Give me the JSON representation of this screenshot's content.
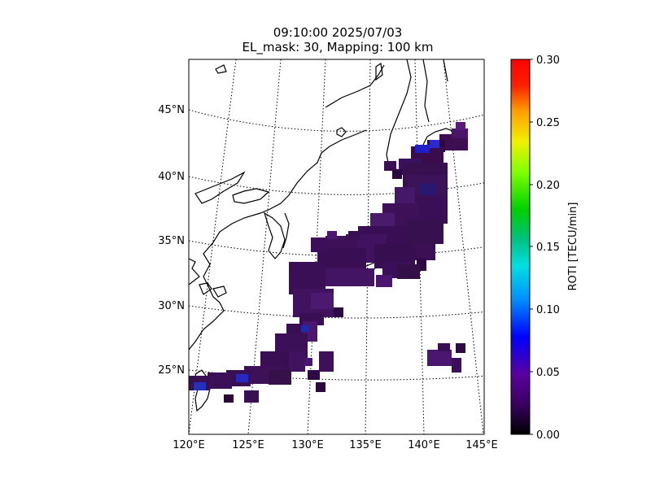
{
  "title": {
    "line1": "09:10:00 2025/07/03",
    "line2": "EL_mask: 30, Mapping: 100 km"
  },
  "map": {
    "lat_labels": [
      "45°N",
      "40°N",
      "35°N",
      "30°N",
      "25°N"
    ],
    "lon_labels": [
      "120°E",
      "125°E",
      "130°E",
      "135°E",
      "140°E",
      "145°E"
    ],
    "grid_style": "dotted",
    "coastline_color": "#000000"
  },
  "colorbar": {
    "label": "ROTI [TECU/min]",
    "min": 0.0,
    "max": 0.3,
    "ticks": [
      "0.00",
      "0.05",
      "0.10",
      "0.15",
      "0.20",
      "0.25",
      "0.30"
    ],
    "colormap": "nipy_spectral-like"
  }
}
